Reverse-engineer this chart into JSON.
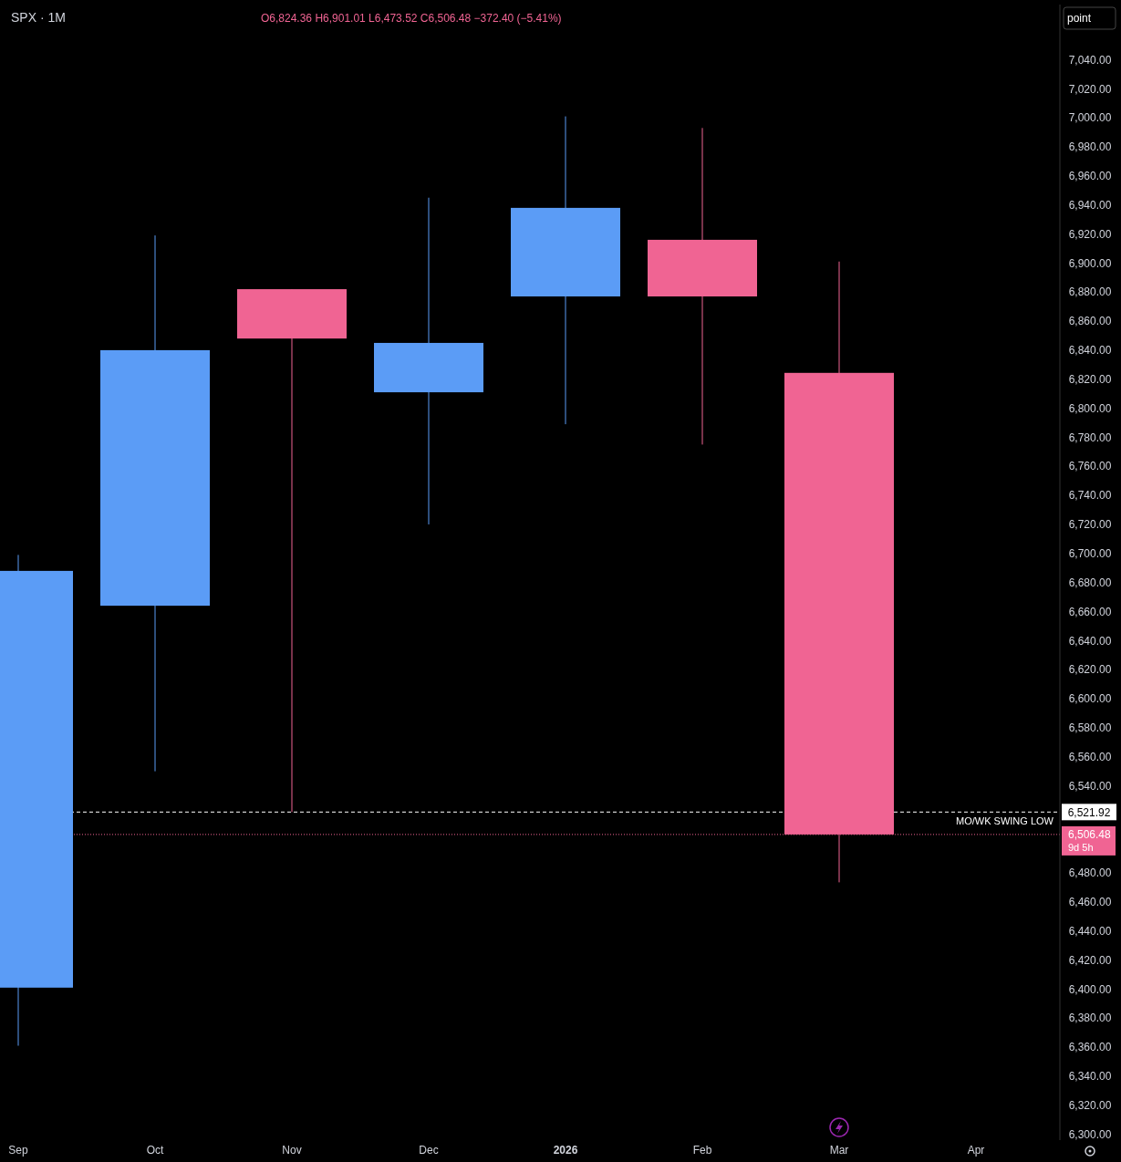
{
  "chart_data": {
    "type": "candlestick",
    "title": "SPX · 1M",
    "categories": [
      "Sep",
      "Oct",
      "Nov",
      "Dec",
      "2026",
      "Feb",
      "Mar",
      "Apr"
    ],
    "ohlc": [
      [
        6401,
        6699,
        6361,
        6688
      ],
      [
        6664,
        6919,
        6550,
        6840
      ],
      [
        6882,
        6882,
        6521.92,
        6848
      ],
      [
        6811,
        6945,
        6720,
        6845
      ],
      [
        6877,
        7001,
        6789,
        6938
      ],
      [
        6916,
        6993,
        6775,
        6877
      ],
      [
        6824.36,
        6901.01,
        6473.52,
        6506.48
      ],
      null
    ],
    "colors": [
      "#5b9cf6",
      "#5b9cf6",
      "#f06493",
      "#5b9cf6",
      "#5b9cf6",
      "#f06493",
      "#f06493",
      null
    ],
    "ylim": [
      6296,
      7078
    ],
    "yticks": [
      {
        "value": 6300,
        "label": "6,300.00"
      },
      {
        "value": 6320,
        "label": "6,320.00"
      },
      {
        "value": 6340,
        "label": "6,340.00"
      },
      {
        "value": 6360,
        "label": "6,360.00"
      },
      {
        "value": 6380,
        "label": "6,380.00"
      },
      {
        "value": 6400,
        "label": "6,400.00"
      },
      {
        "value": 6420,
        "label": "6,420.00"
      },
      {
        "value": 6440,
        "label": "6,440.00"
      },
      {
        "value": 6460,
        "label": "6,460.00"
      },
      {
        "value": 6480,
        "label": "6,480.00"
      },
      {
        "value": 6540,
        "label": "6,540.00"
      },
      {
        "value": 6560,
        "label": "6,560.00"
      },
      {
        "value": 6580,
        "label": "6,580.00"
      },
      {
        "value": 6600,
        "label": "6,600.00"
      },
      {
        "value": 6620,
        "label": "6,620.00"
      },
      {
        "value": 6640,
        "label": "6,640.00"
      },
      {
        "value": 6660,
        "label": "6,660.00"
      },
      {
        "value": 6680,
        "label": "6,680.00"
      },
      {
        "value": 6700,
        "label": "6,700.00"
      },
      {
        "value": 6720,
        "label": "6,720.00"
      },
      {
        "value": 6740,
        "label": "6,740.00"
      },
      {
        "value": 6760,
        "label": "6,760.00"
      },
      {
        "value": 6780,
        "label": "6,780.00"
      },
      {
        "value": 6800,
        "label": "6,800.00"
      },
      {
        "value": 6820,
        "label": "6,820.00"
      },
      {
        "value": 6840,
        "label": "6,840.00"
      },
      {
        "value": 6860,
        "label": "6,860.00"
      },
      {
        "value": 6880,
        "label": "6,880.00"
      },
      {
        "value": 6900,
        "label": "6,900.00"
      },
      {
        "value": 6920,
        "label": "6,920.00"
      },
      {
        "value": 6940,
        "label": "6,940.00"
      },
      {
        "value": 6960,
        "label": "6,960.00"
      },
      {
        "value": 6980,
        "label": "6,980.00"
      },
      {
        "value": 7000,
        "label": "7,000.00"
      },
      {
        "value": 7020,
        "label": "7,020.00"
      },
      {
        "value": 7040,
        "label": "7,040.00"
      }
    ],
    "ref_lines": [
      {
        "axis": "y",
        "value": 6521.92,
        "label": "MO/WK SWING LOW",
        "color": "#ffffff",
        "line_style": "dashed"
      },
      {
        "axis": "y",
        "value": 6506.48,
        "label": "9d 5h",
        "color": "#f06493",
        "line_style": "dotted"
      }
    ],
    "annotations": [
      "O6,824.36 H6,901.01 L6,473.52 C6,506.48 −372.40 (−5.41%)",
      "point",
      "6,521.92",
      "6,506.48"
    ],
    "grid": false
  }
}
